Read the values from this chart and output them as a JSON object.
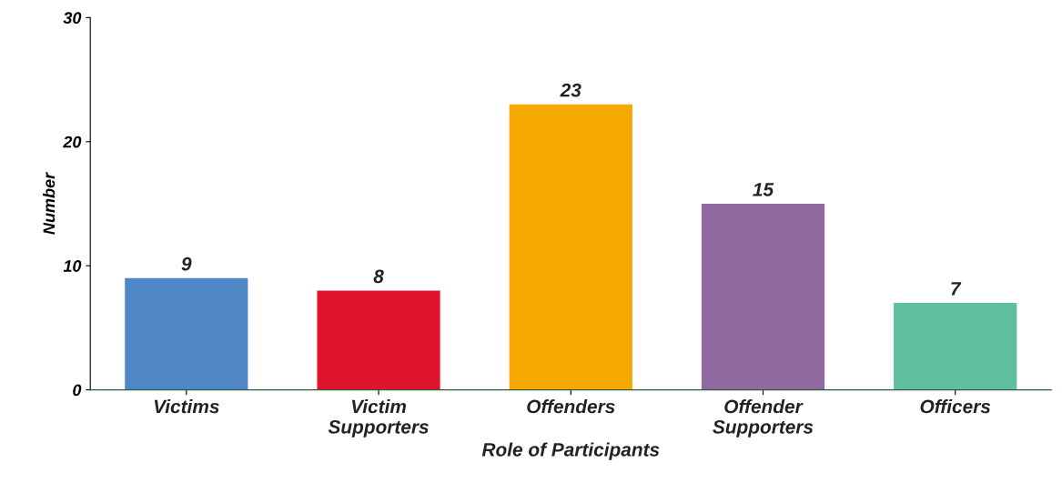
{
  "chart_data": {
    "type": "bar",
    "xlabel": "Role of Participants",
    "ylabel": "Number",
    "categories": [
      "Victims",
      "Victim\nSupporters",
      "Offenders",
      "Offender\nSupporters",
      "Officers"
    ],
    "values": [
      9,
      8,
      23,
      15,
      7
    ],
    "colors": [
      "#4f86c6",
      "#e0142a",
      "#f5a800",
      "#8e6aa0",
      "#5fbf9f"
    ],
    "ylim": [
      0,
      30
    ],
    "yticks": [
      0,
      10,
      20,
      30
    ],
    "grid": false,
    "data_labels": true
  }
}
